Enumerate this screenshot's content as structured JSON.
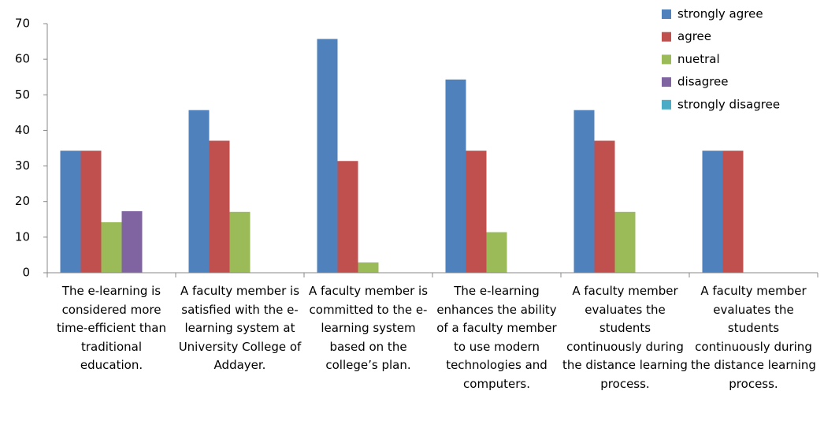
{
  "chart_data": {
    "type": "bar",
    "categories": [
      "The e-learning is considered more time-efficient than traditional education.",
      "A faculty member is satisfied with the e-learning system at University College of Addayer.",
      "A faculty member is committed to the e-learning system based on the college’s plan.",
      "The e-learning enhances the ability of a faculty member to use modern technologies and computers.",
      "A faculty member evaluates the students continuously during the distance learning process.",
      "A faculty member evaluates the students continuously during the distance learning process."
    ],
    "series": [
      {
        "name": "strongly agree",
        "color": "#4f81bd",
        "values": [
          34.3,
          45.7,
          65.7,
          54.3,
          45.7,
          34.3
        ]
      },
      {
        "name": "agree",
        "color": "#c0504d",
        "values": [
          34.3,
          37.1,
          31.4,
          34.3,
          37.1,
          34.3
        ]
      },
      {
        "name": "nuetral",
        "color": "#9bbb59",
        "values": [
          14.2,
          17.1,
          2.9,
          11.4,
          17.1,
          0
        ]
      },
      {
        "name": "disagree",
        "color": "#8064a2",
        "values": [
          17.3,
          0,
          0,
          0,
          0,
          0
        ]
      },
      {
        "name": "strongly disagree",
        "color": "#4bacc6",
        "values": [
          0,
          0,
          0,
          0,
          0,
          0
        ]
      }
    ],
    "ylim": [
      0,
      70
    ],
    "yticks": [
      0,
      10,
      20,
      30,
      40,
      50,
      60,
      70
    ],
    "grid": false,
    "legend": "top-right"
  }
}
